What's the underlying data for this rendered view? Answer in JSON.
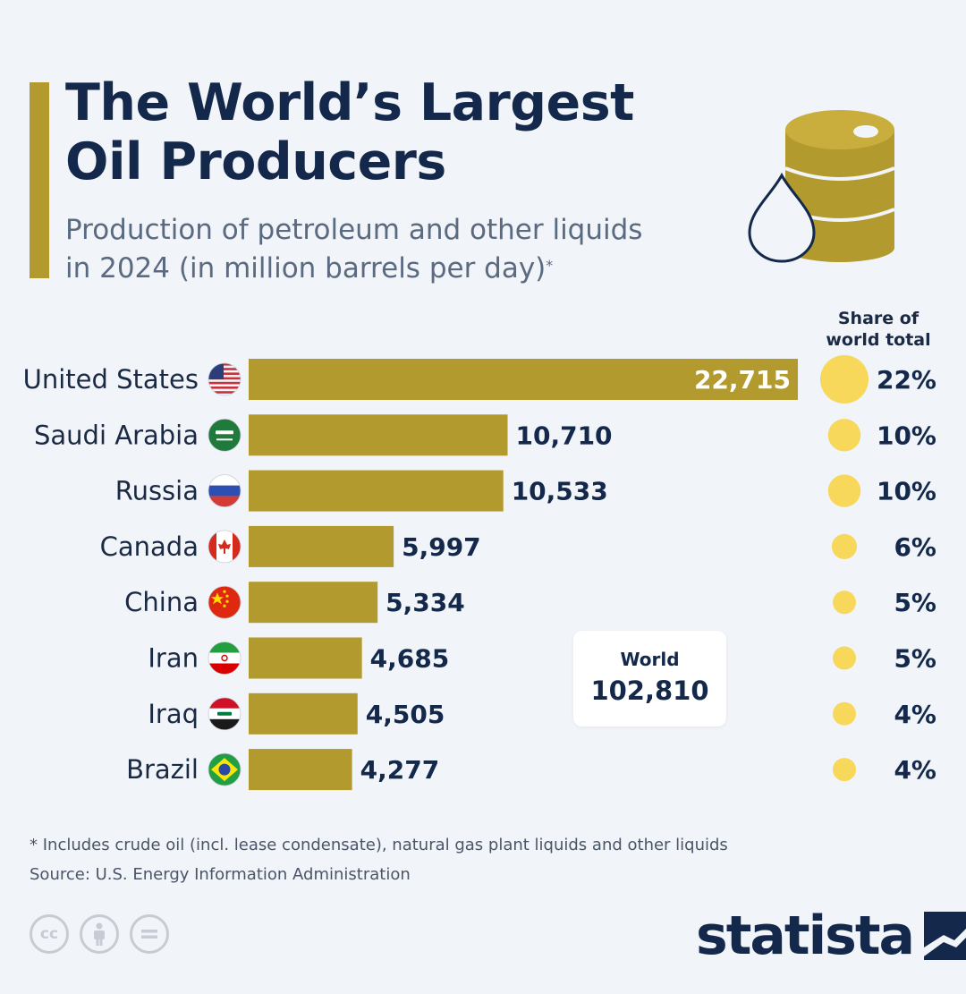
{
  "title_lines": [
    "The World’s Largest",
    "Oil Producers"
  ],
  "subtitle_lines": [
    "Production of petroleum and other liquids",
    "in 2024 (in million barrels per day)"
  ],
  "subtitle_marker": "*",
  "share_header_lines": [
    "Share of",
    "world total"
  ],
  "world": {
    "label": "World",
    "value": "102,810"
  },
  "footnote": "* Includes crude oil (incl. lease condensate), natural gas plant liquids and other liquids",
  "source": "Source: U.S. Energy Information Administration",
  "cc_icons": [
    "cc",
    "by",
    "nd"
  ],
  "brand": "statista",
  "colors": {
    "bar": "#b39a2f",
    "share_dot": "#f7d85a",
    "title": "#13284a",
    "background": "#f1f4f8"
  },
  "chart_data": {
    "type": "bar",
    "orientation": "horizontal",
    "categories": [
      "United States",
      "Saudi Arabia",
      "Russia",
      "Canada",
      "China",
      "Iran",
      "Iraq",
      "Brazil"
    ],
    "values": [
      22715,
      10710,
      10533,
      5997,
      5334,
      4685,
      4505,
      4277
    ],
    "value_labels": [
      "22,715",
      "10,710",
      "10,533",
      "5,997",
      "5,334",
      "4,685",
      "4,505",
      "4,277"
    ],
    "share_of_world_total": [
      "22%",
      "10%",
      "10%",
      "6%",
      "5%",
      "5%",
      "4%",
      "4%"
    ],
    "share_values": [
      22,
      10,
      10,
      6,
      5,
      5,
      4,
      4
    ],
    "flags": [
      "flag-usa-icon",
      "flag-saudi-arabia-icon",
      "flag-russia-icon",
      "flag-canada-icon",
      "flag-china-icon",
      "flag-iran-icon",
      "flag-iraq-icon",
      "flag-brazil-icon"
    ],
    "xlim": [
      0,
      22715
    ],
    "grid": false,
    "legend": "none"
  }
}
